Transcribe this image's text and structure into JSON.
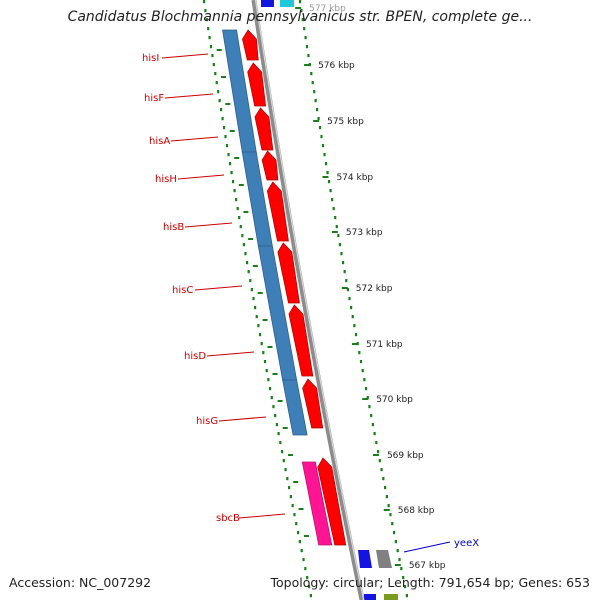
{
  "title": "Candidatus Blochmannia pennsylvanicus str. BPEN, complete ge...",
  "accession": "Accession: NC_007292",
  "summary": "Topology: circular; Length: 791,654 bp; Genes: 653",
  "colors": {
    "background": "#ffffff",
    "gene_red": "#ff0000",
    "gene_pink": "#ff1493",
    "track_blue": "#3f7fb8",
    "backbone_gray": "#8c8c8c",
    "tick_green": "#1a7f1a",
    "gene_label_red": "#cc0000",
    "gene_label_blue": "#0000cc",
    "cyan_gene": "#1fc8d8",
    "blue_gene": "#1414e0",
    "gray_gene": "#808080"
  },
  "scale_labels": [
    "577 kbp",
    "576 kbp",
    "575 kbp",
    "574 kbp",
    "573 kbp",
    "572 kbp",
    "571 kbp",
    "570 kbp",
    "569 kbp",
    "568 kbp",
    "567 kbp"
  ],
  "gene_labels": [
    {
      "name": "hisI",
      "color": "red"
    },
    {
      "name": "hisF",
      "color": "red"
    },
    {
      "name": "hisA",
      "color": "red"
    },
    {
      "name": "hisH",
      "color": "red"
    },
    {
      "name": "hisB",
      "color": "red"
    },
    {
      "name": "hisC",
      "color": "red"
    },
    {
      "name": "hisD",
      "color": "red"
    },
    {
      "name": "hisG",
      "color": "red"
    },
    {
      "name": "sbcB",
      "color": "red"
    },
    {
      "name": "yeeX",
      "color": "blue"
    }
  ]
}
